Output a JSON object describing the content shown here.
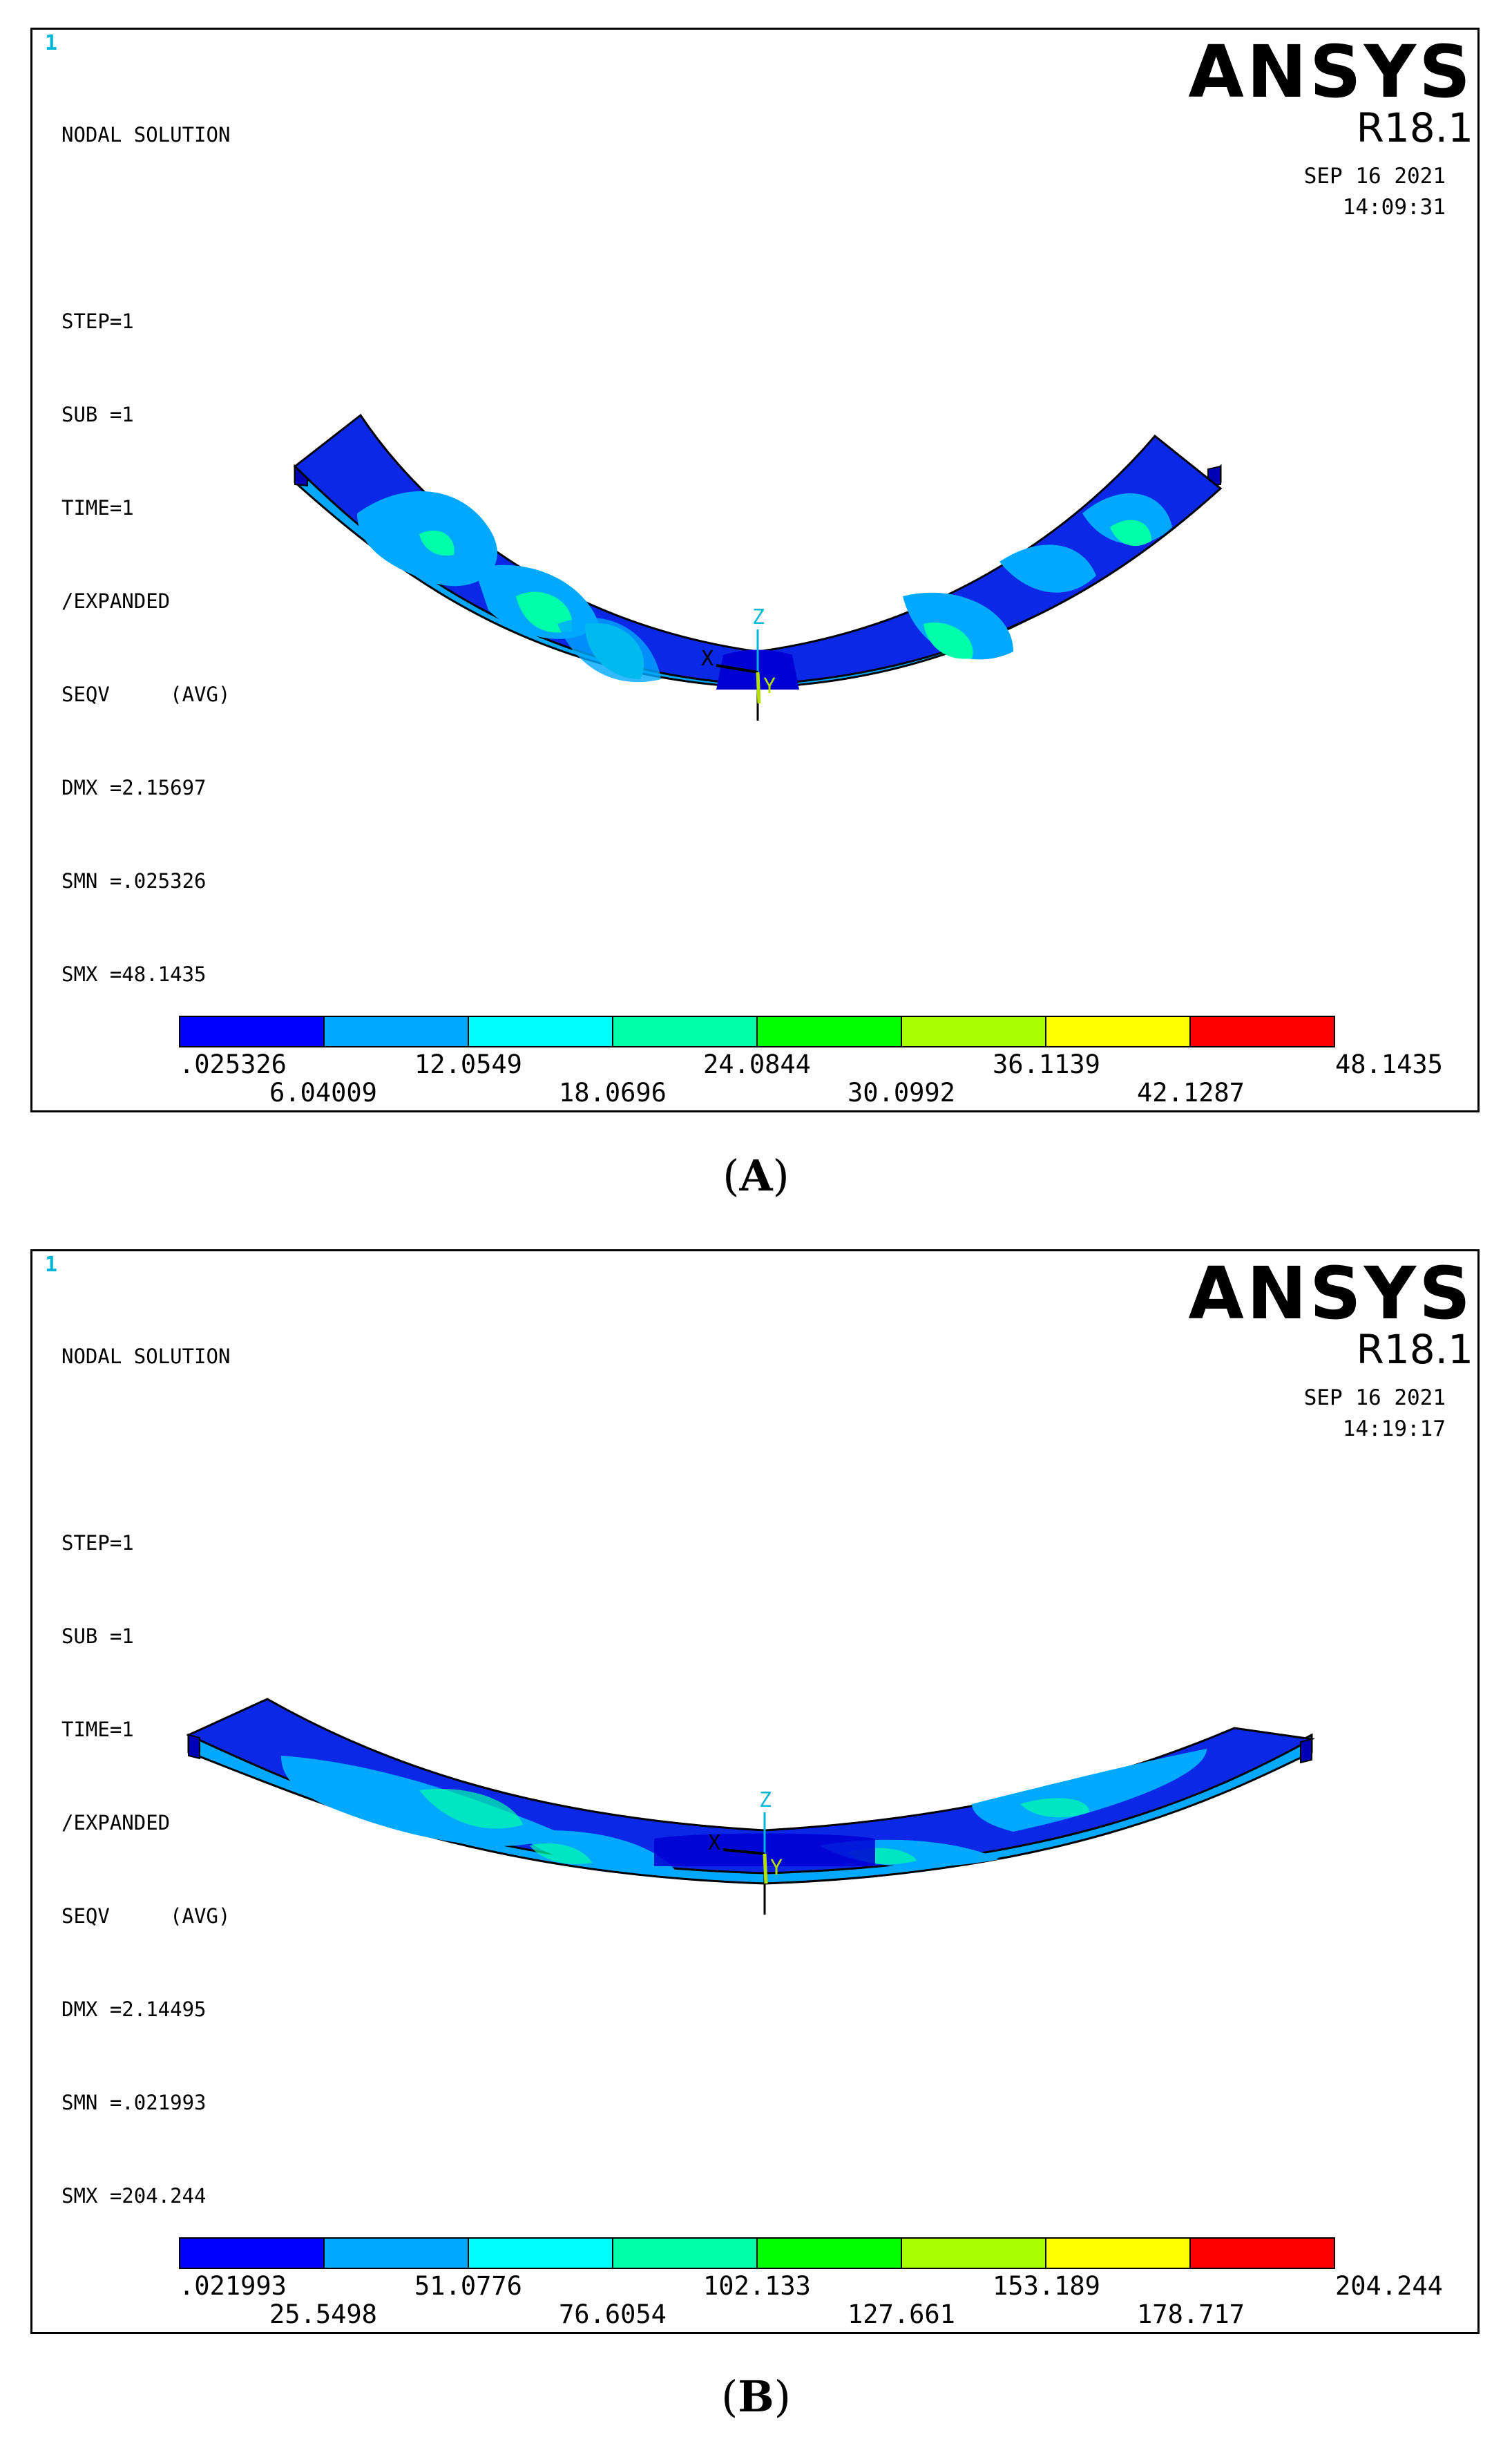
{
  "panels": [
    {
      "window_number": "1",
      "info_lines": [
        "NODAL SOLUTION",
        "",
        "STEP=1",
        "SUB =1",
        "TIME=1",
        "/EXPANDED",
        "SEQV     (AVG)",
        "DMX =2.15697",
        "SMN =.025326",
        "SMX =48.1435"
      ],
      "brand": "ANSYS",
      "version": "R18.1",
      "date": "SEP 16 2021",
      "time": "14:09:31",
      "axis_labels": {
        "x": "X",
        "y": "Y",
        "z": "Z"
      },
      "legend_colors": [
        "#0000ff",
        "#00a8ff",
        "#00ffff",
        "#00ffa8",
        "#00ff00",
        "#a8ff00",
        "#ffff00",
        "#ff0000"
      ],
      "legend_values": [
        ".025326",
        "6.04009",
        "12.0549",
        "18.0696",
        "24.0844",
        "30.0992",
        "36.1139",
        "42.1287",
        "48.1435"
      ],
      "caption_label": "A"
    },
    {
      "window_number": "1",
      "info_lines": [
        "NODAL SOLUTION",
        "",
        "STEP=1",
        "SUB =1",
        "TIME=1",
        "/EXPANDED",
        "SEQV     (AVG)",
        "DMX =2.14495",
        "SMN =.021993",
        "SMX =204.244"
      ],
      "brand": "ANSYS",
      "version": "R18.1",
      "date": "SEP 16 2021",
      "time": "14:19:17",
      "axis_labels": {
        "x": "X",
        "y": "Y",
        "z": "Z"
      },
      "legend_colors": [
        "#0000ff",
        "#00a8ff",
        "#00ffff",
        "#00ffa8",
        "#00ff00",
        "#a8ff00",
        "#ffff00",
        "#ff0000"
      ],
      "legend_values": [
        ".021993",
        "25.5498",
        "51.0776",
        "76.6054",
        "102.133",
        "127.661",
        "153.189",
        "178.717",
        "204.244"
      ],
      "caption_label": "B"
    }
  ]
}
